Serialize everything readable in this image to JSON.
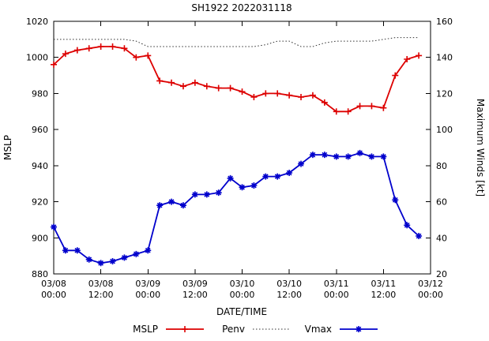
{
  "chart_data": {
    "type": "line",
    "title": "SH1922 2022031118",
    "xlabel": "DATE/TIME",
    "ylabel_left": "MSLP",
    "ylabel_right": "Maximum Winds [kt]",
    "grid": false,
    "legend_position": "bottom-center",
    "y_left_range": [
      880,
      1020
    ],
    "y_left_ticks": [
      880,
      900,
      920,
      940,
      960,
      980,
      1000,
      1020
    ],
    "y_right_range": [
      20,
      160
    ],
    "y_right_ticks": [
      20,
      40,
      60,
      80,
      100,
      120,
      140,
      160
    ],
    "x_range_hours": [
      0,
      96
    ],
    "x_ticks": [
      {
        "hours": 0,
        "date": "03/08",
        "time": "00:00"
      },
      {
        "hours": 12,
        "date": "03/08",
        "time": "12:00"
      },
      {
        "hours": 24,
        "date": "03/09",
        "time": "00:00"
      },
      {
        "hours": 36,
        "date": "03/09",
        "time": "12:00"
      },
      {
        "hours": 48,
        "date": "03/10",
        "time": "00:00"
      },
      {
        "hours": 60,
        "date": "03/10",
        "time": "12:00"
      },
      {
        "hours": 72,
        "date": "03/11",
        "time": "00:00"
      },
      {
        "hours": 84,
        "date": "03/11",
        "time": "12:00"
      },
      {
        "hours": 96,
        "date": "03/12",
        "time": "00:00"
      }
    ],
    "series": [
      {
        "name": "Penv",
        "axis": "left",
        "color": "#303030",
        "style": "dotted",
        "marker": "none",
        "points": [
          [
            0,
            1010
          ],
          [
            3,
            1010
          ],
          [
            6,
            1010
          ],
          [
            9,
            1010
          ],
          [
            12,
            1010
          ],
          [
            15,
            1010
          ],
          [
            18,
            1010
          ],
          [
            21,
            1009
          ],
          [
            24,
            1006
          ],
          [
            27,
            1006
          ],
          [
            30,
            1006
          ],
          [
            33,
            1006
          ],
          [
            36,
            1006
          ],
          [
            39,
            1006
          ],
          [
            42,
            1006
          ],
          [
            45,
            1006
          ],
          [
            48,
            1006
          ],
          [
            51,
            1006
          ],
          [
            54,
            1007
          ],
          [
            57,
            1009
          ],
          [
            60,
            1009
          ],
          [
            63,
            1006
          ],
          [
            66,
            1006
          ],
          [
            69,
            1008
          ],
          [
            72,
            1009
          ],
          [
            75,
            1009
          ],
          [
            78,
            1009
          ],
          [
            81,
            1009
          ],
          [
            84,
            1010
          ],
          [
            87,
            1011
          ],
          [
            90,
            1011
          ],
          [
            93,
            1011
          ]
        ]
      },
      {
        "name": "MSLP",
        "axis": "left",
        "color": "#dd0000",
        "style": "solid",
        "marker": "plus",
        "points": [
          [
            0,
            996
          ],
          [
            3,
            1002
          ],
          [
            6,
            1004
          ],
          [
            9,
            1005
          ],
          [
            12,
            1006
          ],
          [
            15,
            1006
          ],
          [
            18,
            1005
          ],
          [
            21,
            1000
          ],
          [
            24,
            1001
          ],
          [
            27,
            987
          ],
          [
            30,
            986
          ],
          [
            33,
            984
          ],
          [
            36,
            986
          ],
          [
            39,
            984
          ],
          [
            42,
            983
          ],
          [
            45,
            983
          ],
          [
            48,
            981
          ],
          [
            51,
            978
          ],
          [
            54,
            980
          ],
          [
            57,
            980
          ],
          [
            60,
            979
          ],
          [
            63,
            978
          ],
          [
            66,
            979
          ],
          [
            69,
            975
          ],
          [
            72,
            970
          ],
          [
            75,
            970
          ],
          [
            78,
            973
          ],
          [
            81,
            973
          ],
          [
            84,
            972
          ],
          [
            87,
            990
          ],
          [
            90,
            999
          ],
          [
            93,
            1001
          ]
        ]
      },
      {
        "name": "Vmax",
        "axis": "right",
        "color": "#0000cc",
        "style": "solid",
        "marker": "asterisk",
        "points": [
          [
            0,
            46
          ],
          [
            3,
            33
          ],
          [
            6,
            33
          ],
          [
            9,
            28
          ],
          [
            12,
            26
          ],
          [
            15,
            27
          ],
          [
            18,
            29
          ],
          [
            21,
            31
          ],
          [
            24,
            33
          ],
          [
            27,
            58
          ],
          [
            30,
            60
          ],
          [
            33,
            58
          ],
          [
            36,
            64
          ],
          [
            39,
            64
          ],
          [
            42,
            65
          ],
          [
            45,
            73
          ],
          [
            48,
            68
          ],
          [
            51,
            69
          ],
          [
            54,
            74
          ],
          [
            57,
            74
          ],
          [
            60,
            76
          ],
          [
            63,
            81
          ],
          [
            66,
            86
          ],
          [
            69,
            86
          ],
          [
            72,
            85
          ],
          [
            75,
            85
          ],
          [
            78,
            87
          ],
          [
            81,
            85
          ],
          [
            84,
            85
          ],
          [
            87,
            61
          ],
          [
            90,
            47
          ],
          [
            93,
            41
          ]
        ]
      }
    ],
    "legend_order": [
      "MSLP",
      "Penv",
      "Vmax"
    ]
  }
}
